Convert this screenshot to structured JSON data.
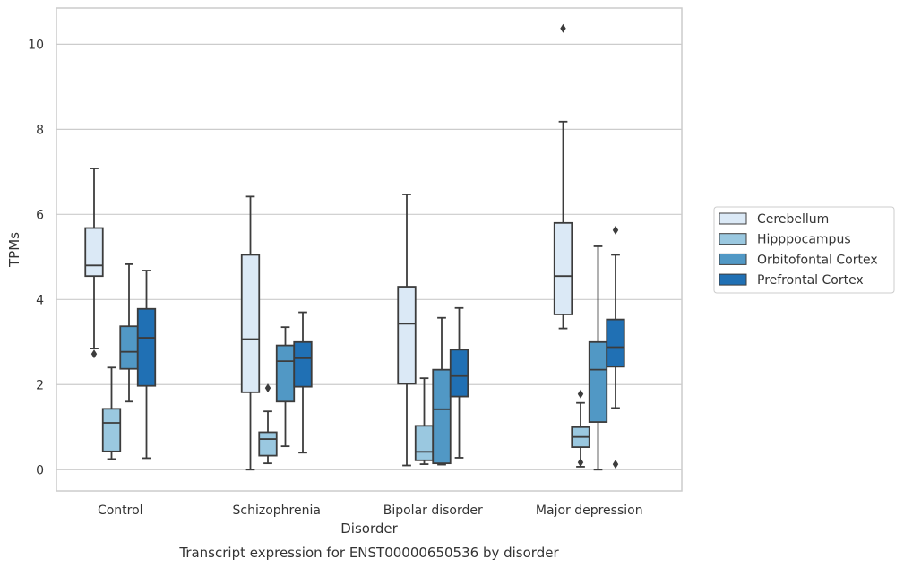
{
  "chart_data": {
    "type": "box",
    "caption": "Transcript expression for ENST00000650536 by disorder",
    "xlabel": "Disorder",
    "ylabel": "TPMs",
    "ylim": [
      -0.5,
      10.85
    ],
    "yticks": [
      0,
      2,
      4,
      6,
      8,
      10
    ],
    "grid": "horizontal",
    "legend_position": "right-outside",
    "categories": [
      "Control",
      "Schizophrenia",
      "Bipolar disorder",
      "Major depression"
    ],
    "series": [
      {
        "name": "Cerebellum",
        "color": "#dbe9f6",
        "boxes": [
          {
            "whisker_low": 2.85,
            "q1": 4.55,
            "median": 4.8,
            "q3": 5.68,
            "whisker_high": 7.08,
            "outliers": [
              2.72
            ]
          },
          {
            "whisker_low": 0.0,
            "q1": 1.82,
            "median": 3.07,
            "q3": 5.05,
            "whisker_high": 6.42,
            "outliers": []
          },
          {
            "whisker_low": 0.1,
            "q1": 2.02,
            "median": 3.43,
            "q3": 4.3,
            "whisker_high": 6.47,
            "outliers": []
          },
          {
            "whisker_low": 3.32,
            "q1": 3.65,
            "median": 4.55,
            "q3": 5.8,
            "whisker_high": 8.18,
            "outliers": [
              10.37
            ]
          }
        ]
      },
      {
        "name": "Hipppocampus",
        "color": "#9ac8e0",
        "boxes": [
          {
            "whisker_low": 0.25,
            "q1": 0.43,
            "median": 1.1,
            "q3": 1.43,
            "whisker_high": 2.4,
            "outliers": []
          },
          {
            "whisker_low": 0.15,
            "q1": 0.33,
            "median": 0.72,
            "q3": 0.88,
            "whisker_high": 1.37,
            "outliers": [
              1.92
            ]
          },
          {
            "whisker_low": 0.13,
            "q1": 0.22,
            "median": 0.42,
            "q3": 1.03,
            "whisker_high": 2.15,
            "outliers": []
          },
          {
            "whisker_low": 0.07,
            "q1": 0.53,
            "median": 0.77,
            "q3": 1.0,
            "whisker_high": 1.57,
            "outliers": [
              1.78,
              0.17
            ]
          }
        ]
      },
      {
        "name": "Orbitofontal Cortex",
        "color": "#5198c5",
        "boxes": [
          {
            "whisker_low": 1.6,
            "q1": 2.37,
            "median": 2.77,
            "q3": 3.37,
            "whisker_high": 4.83,
            "outliers": []
          },
          {
            "whisker_low": 0.55,
            "q1": 1.6,
            "median": 2.55,
            "q3": 2.92,
            "whisker_high": 3.35,
            "outliers": []
          },
          {
            "whisker_low": 0.12,
            "q1": 0.15,
            "median": 1.42,
            "q3": 2.35,
            "whisker_high": 3.57,
            "outliers": []
          },
          {
            "whisker_low": 0.0,
            "q1": 1.12,
            "median": 2.35,
            "q3": 3.0,
            "whisker_high": 5.25,
            "outliers": []
          }
        ]
      },
      {
        "name": "Prefrontal Cortex",
        "color": "#2070b4",
        "boxes": [
          {
            "whisker_low": 0.27,
            "q1": 1.97,
            "median": 3.1,
            "q3": 3.78,
            "whisker_high": 4.68,
            "outliers": []
          },
          {
            "whisker_low": 0.4,
            "q1": 1.95,
            "median": 2.62,
            "q3": 3.0,
            "whisker_high": 3.7,
            "outliers": []
          },
          {
            "whisker_low": 0.28,
            "q1": 1.72,
            "median": 2.2,
            "q3": 2.82,
            "whisker_high": 3.8,
            "outliers": []
          },
          {
            "whisker_low": 1.45,
            "q1": 2.42,
            "median": 2.88,
            "q3": 3.53,
            "whisker_high": 5.05,
            "outliers": [
              5.63,
              0.13
            ]
          }
        ]
      }
    ]
  }
}
